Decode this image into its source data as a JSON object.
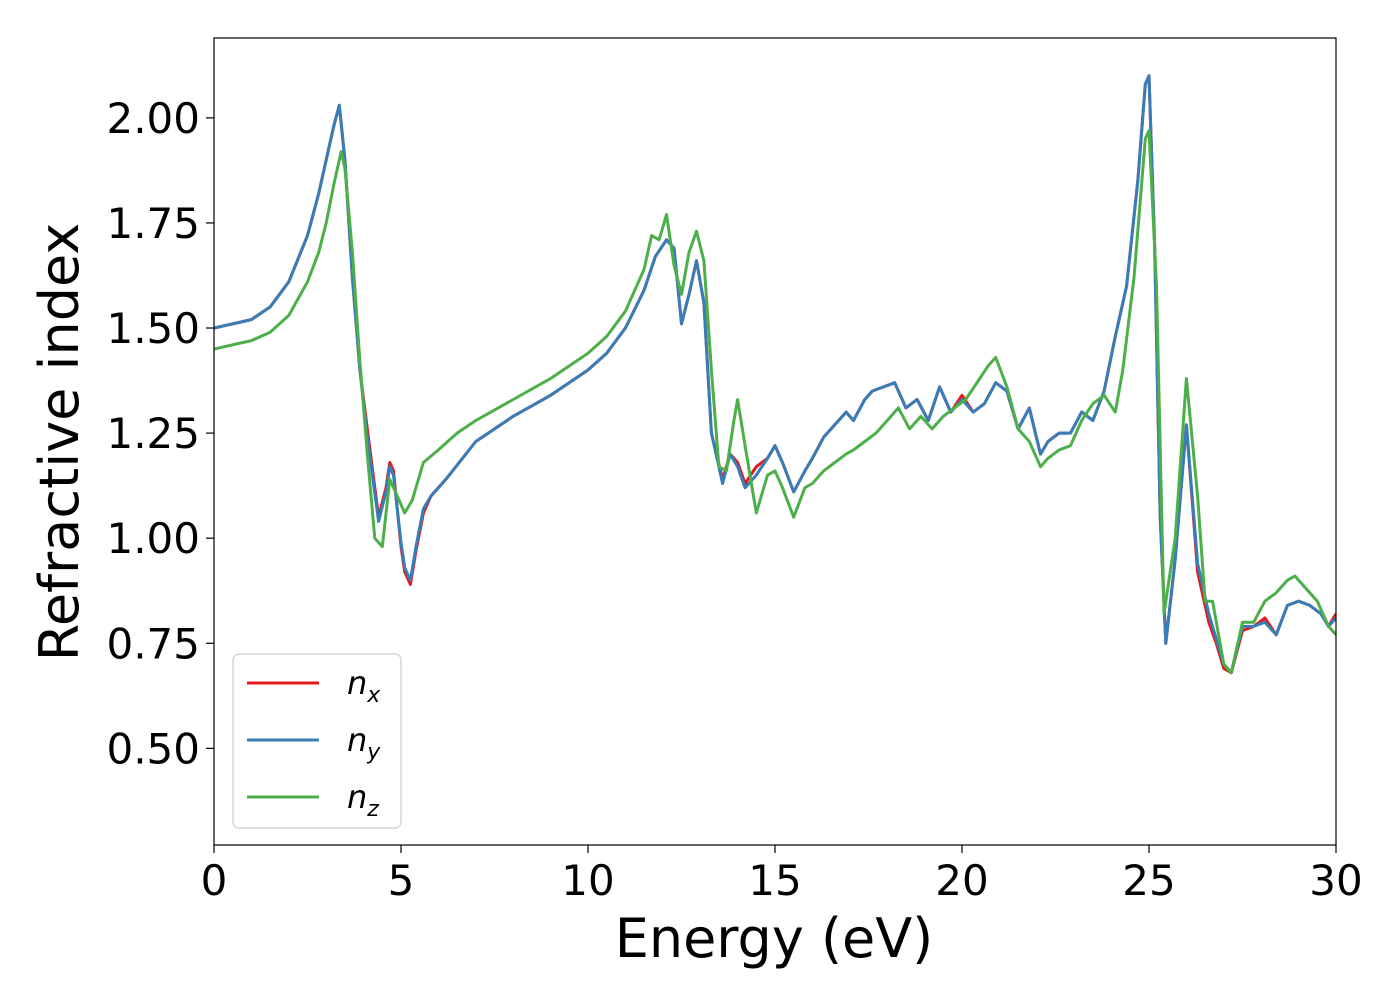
{
  "chart_data": {
    "type": "line",
    "xlabel": "Energy (eV)",
    "ylabel": "Refractive index",
    "xlim": [
      0,
      30
    ],
    "ylim": [
      0.27,
      2.19
    ],
    "xticks": [
      0,
      5,
      10,
      15,
      20,
      25,
      30
    ],
    "xtick_labels": [
      "0",
      "5",
      "10",
      "15",
      "20",
      "25",
      "30"
    ],
    "yticks": [
      0.5,
      0.75,
      1.0,
      1.25,
      1.5,
      1.75,
      2.0
    ],
    "ytick_labels": [
      "0.50",
      "0.75",
      "1.00",
      "1.25",
      "1.50",
      "1.75",
      "2.00"
    ],
    "grid": false,
    "legend_position": "lower-left",
    "series": [
      {
        "name": "n_x",
        "legend_base": "n",
        "legend_sub": "x",
        "color": "#e41a1c",
        "x": [
          0,
          1,
          1.5,
          2,
          2.5,
          2.8,
          3.0,
          3.2,
          3.35,
          3.5,
          3.7,
          3.9,
          4.1,
          4.4,
          4.6,
          4.7,
          4.8,
          5.0,
          5.1,
          5.25,
          5.4,
          5.6,
          5.8,
          6.2,
          7.0,
          8.0,
          9.0,
          10.0,
          10.5,
          11.0,
          11.5,
          11.8,
          12.1,
          12.3,
          12.5,
          12.7,
          12.9,
          13.1,
          13.3,
          13.6,
          13.8,
          14.0,
          14.2,
          14.5,
          14.8,
          15.0,
          15.2,
          15.5,
          15.8,
          16.0,
          16.3,
          16.6,
          16.9,
          17.1,
          17.4,
          17.6,
          17.9,
          18.2,
          18.5,
          18.8,
          19.1,
          19.4,
          19.7,
          20.0,
          20.3,
          20.6,
          20.9,
          21.2,
          21.5,
          21.8,
          22.1,
          22.3,
          22.6,
          22.9,
          23.2,
          23.5,
          23.8,
          24.1,
          24.4,
          24.7,
          24.9,
          25.0,
          25.15,
          25.3,
          25.45,
          25.7,
          26.0,
          26.3,
          26.6,
          26.8,
          27.0,
          27.2,
          27.5,
          27.8,
          28.1,
          28.4,
          28.7,
          29.0,
          29.3,
          29.6,
          29.8,
          30.0
        ],
        "y": [
          1.5,
          1.52,
          1.55,
          1.61,
          1.72,
          1.82,
          1.9,
          1.98,
          2.03,
          1.9,
          1.62,
          1.4,
          1.26,
          1.05,
          1.12,
          1.18,
          1.16,
          0.98,
          0.92,
          0.89,
          0.97,
          1.06,
          1.1,
          1.14,
          1.23,
          1.29,
          1.34,
          1.4,
          1.44,
          1.5,
          1.59,
          1.67,
          1.71,
          1.69,
          1.51,
          1.58,
          1.66,
          1.56,
          1.25,
          1.14,
          1.2,
          1.18,
          1.13,
          1.17,
          1.19,
          1.22,
          1.18,
          1.11,
          1.16,
          1.19,
          1.24,
          1.27,
          1.3,
          1.28,
          1.33,
          1.35,
          1.36,
          1.37,
          1.31,
          1.33,
          1.28,
          1.36,
          1.3,
          1.34,
          1.3,
          1.32,
          1.37,
          1.35,
          1.26,
          1.31,
          1.2,
          1.23,
          1.25,
          1.25,
          1.3,
          1.28,
          1.35,
          1.48,
          1.6,
          1.85,
          2.08,
          2.1,
          1.7,
          1.05,
          0.75,
          0.95,
          1.27,
          0.92,
          0.8,
          0.75,
          0.69,
          0.68,
          0.78,
          0.79,
          0.81,
          0.77,
          0.84,
          0.85,
          0.84,
          0.82,
          0.79,
          0.82
        ]
      },
      {
        "name": "n_y",
        "legend_base": "n",
        "legend_sub": "y",
        "color": "#377eb8",
        "x": [
          0,
          1,
          1.5,
          2,
          2.5,
          2.8,
          3.0,
          3.2,
          3.35,
          3.5,
          3.7,
          3.9,
          4.1,
          4.4,
          4.6,
          4.7,
          4.8,
          5.0,
          5.1,
          5.25,
          5.4,
          5.6,
          5.8,
          6.2,
          7.0,
          8.0,
          9.0,
          10.0,
          10.5,
          11.0,
          11.5,
          11.8,
          12.1,
          12.3,
          12.5,
          12.7,
          12.9,
          13.1,
          13.3,
          13.6,
          13.8,
          14.0,
          14.2,
          14.5,
          14.8,
          15.0,
          15.2,
          15.5,
          15.8,
          16.0,
          16.3,
          16.6,
          16.9,
          17.1,
          17.4,
          17.6,
          17.9,
          18.2,
          18.5,
          18.8,
          19.1,
          19.4,
          19.7,
          20.0,
          20.3,
          20.6,
          20.9,
          21.2,
          21.5,
          21.8,
          22.1,
          22.3,
          22.6,
          22.9,
          23.2,
          23.5,
          23.8,
          24.1,
          24.4,
          24.7,
          24.9,
          25.0,
          25.15,
          25.3,
          25.45,
          25.7,
          26.0,
          26.3,
          26.6,
          26.8,
          27.0,
          27.2,
          27.5,
          27.8,
          28.1,
          28.4,
          28.7,
          29.0,
          29.3,
          29.6,
          29.8,
          30.0
        ],
        "y": [
          1.5,
          1.52,
          1.55,
          1.61,
          1.72,
          1.82,
          1.9,
          1.98,
          2.03,
          1.9,
          1.62,
          1.4,
          1.24,
          1.04,
          1.11,
          1.17,
          1.15,
          0.99,
          0.93,
          0.9,
          0.98,
          1.07,
          1.1,
          1.14,
          1.23,
          1.29,
          1.34,
          1.4,
          1.44,
          1.5,
          1.59,
          1.67,
          1.71,
          1.69,
          1.51,
          1.58,
          1.66,
          1.56,
          1.25,
          1.13,
          1.2,
          1.17,
          1.12,
          1.15,
          1.19,
          1.22,
          1.18,
          1.11,
          1.16,
          1.19,
          1.24,
          1.27,
          1.3,
          1.28,
          1.33,
          1.35,
          1.36,
          1.37,
          1.31,
          1.33,
          1.28,
          1.36,
          1.3,
          1.33,
          1.3,
          1.32,
          1.37,
          1.35,
          1.26,
          1.31,
          1.2,
          1.23,
          1.25,
          1.25,
          1.3,
          1.28,
          1.35,
          1.48,
          1.6,
          1.85,
          2.08,
          2.1,
          1.7,
          1.05,
          0.75,
          0.95,
          1.27,
          0.94,
          0.82,
          0.76,
          0.7,
          0.68,
          0.79,
          0.79,
          0.8,
          0.77,
          0.84,
          0.85,
          0.84,
          0.82,
          0.79,
          0.81
        ]
      },
      {
        "name": "n_z",
        "legend_base": "n",
        "legend_sub": "z",
        "color": "#4daf4a",
        "x": [
          0,
          1,
          1.5,
          2,
          2.5,
          2.8,
          3.0,
          3.2,
          3.4,
          3.5,
          3.7,
          3.9,
          4.1,
          4.3,
          4.5,
          4.7,
          4.9,
          5.1,
          5.3,
          5.6,
          6.0,
          6.5,
          7.0,
          8.0,
          9.0,
          10.0,
          10.5,
          11.0,
          11.5,
          11.7,
          11.9,
          12.1,
          12.3,
          12.5,
          12.7,
          12.9,
          13.1,
          13.3,
          13.5,
          13.7,
          13.9,
          14.0,
          14.2,
          14.5,
          14.8,
          15.0,
          15.2,
          15.5,
          15.8,
          16.0,
          16.3,
          16.6,
          16.9,
          17.1,
          17.4,
          17.7,
          18.0,
          18.3,
          18.6,
          18.9,
          19.2,
          19.5,
          19.8,
          20.1,
          20.4,
          20.7,
          20.9,
          21.2,
          21.5,
          21.8,
          22.1,
          22.3,
          22.6,
          22.9,
          23.2,
          23.5,
          23.8,
          24.1,
          24.3,
          24.6,
          24.9,
          25.0,
          25.2,
          25.4,
          25.7,
          26.0,
          26.3,
          26.5,
          26.7,
          27.0,
          27.2,
          27.5,
          27.8,
          28.1,
          28.4,
          28.7,
          28.9,
          29.2,
          29.5,
          29.8,
          30.0
        ],
        "y": [
          1.45,
          1.47,
          1.49,
          1.53,
          1.61,
          1.68,
          1.75,
          1.84,
          1.92,
          1.88,
          1.68,
          1.42,
          1.2,
          1.0,
          0.98,
          1.14,
          1.1,
          1.06,
          1.09,
          1.18,
          1.21,
          1.25,
          1.28,
          1.33,
          1.38,
          1.44,
          1.48,
          1.54,
          1.64,
          1.72,
          1.71,
          1.77,
          1.65,
          1.58,
          1.68,
          1.73,
          1.66,
          1.4,
          1.17,
          1.16,
          1.28,
          1.33,
          1.22,
          1.06,
          1.15,
          1.16,
          1.12,
          1.05,
          1.12,
          1.13,
          1.16,
          1.18,
          1.2,
          1.21,
          1.23,
          1.25,
          1.28,
          1.31,
          1.26,
          1.29,
          1.26,
          1.29,
          1.31,
          1.33,
          1.37,
          1.41,
          1.43,
          1.36,
          1.26,
          1.23,
          1.17,
          1.19,
          1.21,
          1.22,
          1.28,
          1.32,
          1.34,
          1.3,
          1.4,
          1.62,
          1.95,
          1.97,
          1.6,
          0.82,
          1.0,
          1.38,
          1.1,
          0.85,
          0.85,
          0.7,
          0.68,
          0.8,
          0.8,
          0.85,
          0.87,
          0.9,
          0.91,
          0.88,
          0.85,
          0.79,
          0.77
        ]
      }
    ]
  }
}
